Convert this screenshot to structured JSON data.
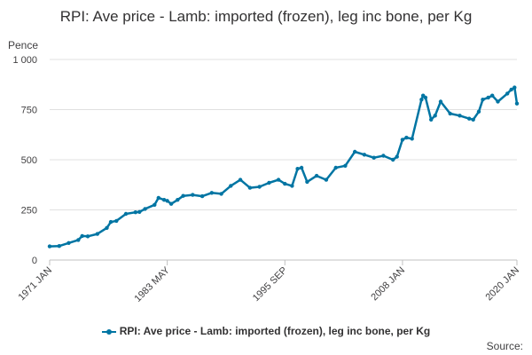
{
  "colors": {
    "series": "#0075a3",
    "grid": "#e0e0e0",
    "axis": "#c0c0c0"
  },
  "source_label": "Source:",
  "chart_data": {
    "type": "line",
    "title": "RPI: Ave price - Lamb: imported (frozen), leg inc bone, per Kg",
    "ylabel": "Pence",
    "xlabel": "",
    "ylim": [
      0,
      1000
    ],
    "xlim": [
      "1971-01",
      "2020-01"
    ],
    "y_ticks": [
      {
        "value": 0,
        "label": "0"
      },
      {
        "value": 250,
        "label": "250"
      },
      {
        "value": 500,
        "label": "500"
      },
      {
        "value": 750,
        "label": "750"
      },
      {
        "value": 1000,
        "label": "1 000"
      }
    ],
    "x_ticks": [
      {
        "value": "1971-01",
        "label": "1971 JAN"
      },
      {
        "value": "1983-05",
        "label": "1983 MAY"
      },
      {
        "value": "1995-09",
        "label": "1995 SEP"
      },
      {
        "value": "2008-01",
        "label": "2008 JAN"
      },
      {
        "value": "2020-01",
        "label": "2020 JAN"
      }
    ],
    "grid": true,
    "legend_position": "bottom",
    "series": [
      {
        "name": "RPI: Ave price - Lamb: imported (frozen), leg inc bone, per Kg",
        "x": [
          "1971-01",
          "1972-01",
          "1973-01",
          "1974-01",
          "1974-06",
          "1975-01",
          "1976-01",
          "1977-01",
          "1977-06",
          "1978-01",
          "1979-01",
          "1980-01",
          "1980-06",
          "1981-01",
          "1982-01",
          "1982-06",
          "1983-01",
          "1983-05",
          "1983-10",
          "1984-06",
          "1985-01",
          "1986-01",
          "1987-01",
          "1988-01",
          "1989-01",
          "1990-01",
          "1991-01",
          "1992-01",
          "1993-01",
          "1994-01",
          "1995-01",
          "1995-09",
          "1996-06",
          "1997-01",
          "1997-06",
          "1998-01",
          "1999-01",
          "2000-01",
          "2001-01",
          "2002-01",
          "2003-01",
          "2004-01",
          "2005-01",
          "2006-01",
          "2007-01",
          "2007-06",
          "2008-01",
          "2008-06",
          "2009-01",
          "2010-01",
          "2010-03",
          "2010-06",
          "2011-01",
          "2011-06",
          "2012-01",
          "2013-01",
          "2014-01",
          "2015-01",
          "2015-06",
          "2016-01",
          "2016-06",
          "2017-01",
          "2017-06",
          "2018-01",
          "2019-01",
          "2019-06",
          "2019-10",
          "2020-01"
        ],
        "values": [
          68,
          70,
          85,
          100,
          120,
          118,
          130,
          160,
          190,
          195,
          230,
          238,
          240,
          255,
          275,
          310,
          300,
          295,
          280,
          300,
          320,
          325,
          318,
          335,
          330,
          370,
          400,
          360,
          365,
          385,
          400,
          380,
          370,
          455,
          460,
          390,
          420,
          400,
          460,
          470,
          540,
          525,
          510,
          520,
          500,
          515,
          600,
          610,
          605,
          800,
          820,
          810,
          700,
          720,
          790,
          730,
          720,
          705,
          700,
          740,
          800,
          810,
          820,
          790,
          830,
          850,
          860,
          780
        ]
      }
    ]
  }
}
